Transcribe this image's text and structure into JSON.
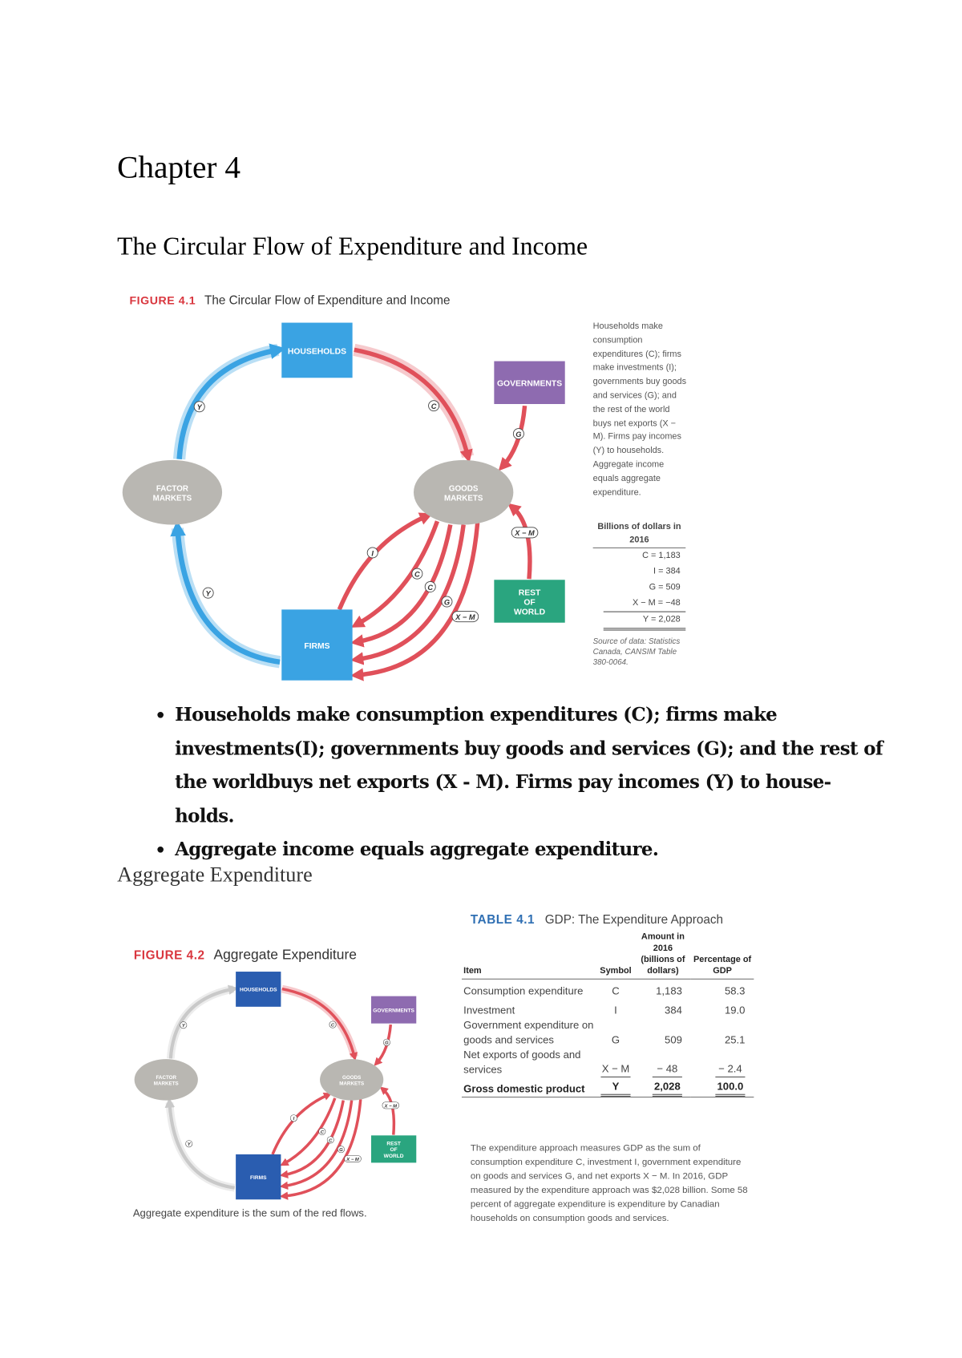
{
  "chapter_title": "Chapter 4",
  "section1_title": "The Circular Flow of Expenditure and Income",
  "figure1": {
    "label": "FIGURE 4.1",
    "title": "The Circular Flow of Expenditure and Income",
    "nodes": {
      "households": "HOUSEHOLDS",
      "governments": "GOVERNMENTS",
      "factor_markets": [
        "FACTOR",
        "MARKETS"
      ],
      "goods_markets": [
        "GOODS",
        "MARKETS"
      ],
      "firms": "FIRMS",
      "rest_of_world": [
        "REST",
        "OF",
        "WORLD"
      ]
    },
    "flow_labels": {
      "Y": "Y",
      "C": "C",
      "G": "G",
      "I": "I",
      "XM": "X − M"
    },
    "side_text": "Households make consumption expenditures (C); firms make investments (I); governments buy goods and services (G); and the rest of the world buys net exports (X − M). Firms pay incomes (Y) to households. Aggregate income equals aggregate expenditure.",
    "billions_header": "Billions of dollars in 2016",
    "values": [
      "C = 1,183",
      "I =   384",
      "G =   509",
      "X − M =   −48",
      "Y = 2,028"
    ],
    "source": "Source of data: Statistics Canada, CANSIM Table 380-0064.",
    "colors": {
      "income_flow": "#3aa3e3",
      "expenditure_flow": "#e0505a",
      "households": "#3aa3e3",
      "governments": "#8e6bb0",
      "markets": "#b9b7b2",
      "rest_of_world": "#2aa57f"
    }
  },
  "bullets": [
    "Households make consumption expenditures (C); firms make investments(I); governments buy goods and services (G); and the rest of the worldbuys net exports (X - M). Firms pay incomes (Y) to house- holds.",
    "Aggregate income equals aggregate expenditure."
  ],
  "section2_title": "Aggregate Expenditure",
  "figure2": {
    "label": "FIGURE 4.2",
    "title": "Aggregate Expenditure",
    "caption": "Aggregate expenditure is the sum of the red flows.",
    "colors": {
      "income_flow": "#c9c9c9",
      "households": "#2a5db0"
    }
  },
  "table": {
    "label": "TABLE 4.1",
    "title": "GDP: The Expenditure Approach",
    "headers": [
      "Item",
      "Symbol",
      "Amount in 2016 (billions of dollars)",
      "Percentage of GDP"
    ],
    "rows": [
      [
        "Consumption expenditure",
        "C",
        "1,183",
        "58.3"
      ],
      [
        "Investment",
        "I",
        "384",
        "19.0"
      ],
      [
        "Government expenditure on goods and services",
        "G",
        "509",
        "25.1"
      ],
      [
        "Net exports of goods and services",
        "X − M",
        "− 48",
        "− 2.4"
      ],
      [
        "Gross domestic product",
        "Y",
        "2,028",
        "100.0"
      ]
    ],
    "note": "The expenditure approach measures GDP as the sum of consumption expenditure C, investment I, government expenditure on goods and services G, and net exports X − M. In 2016, GDP measured by the expenditure approach was $2,028 billion. Some 58 percent of aggregate expenditure is expenditure by Canadian households on consumption goods and services."
  }
}
